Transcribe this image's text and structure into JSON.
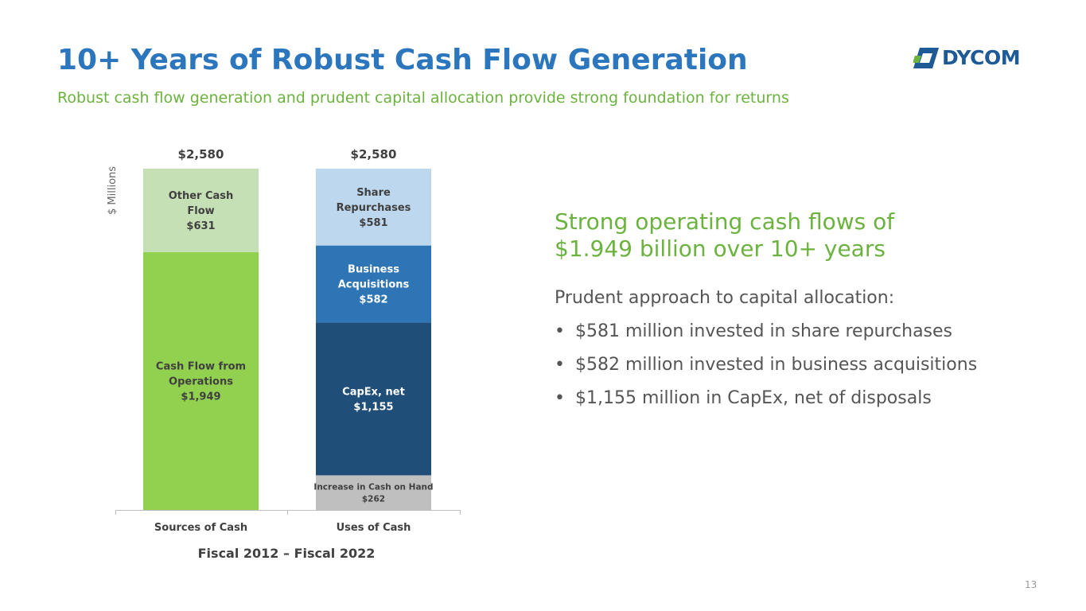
{
  "slide": {
    "title": "10+ Years of Robust Cash Flow Generation",
    "subtitle": "Robust cash flow generation and prudent capital allocation provide strong foundation for returns",
    "page_number": "13"
  },
  "logo": {
    "text": "DYCOM",
    "color": "#1d5a96",
    "icon": "dycom-logo-icon"
  },
  "chart_data": {
    "type": "bar",
    "stacked": true,
    "ylabel": "$ Millions",
    "xlabel": "Fiscal 2012 – Fiscal 2022",
    "categories": [
      "Sources of Cash",
      "Uses of Cash"
    ],
    "totals": [
      "$2,580",
      "$2,580"
    ],
    "ylim": [
      0,
      2580
    ],
    "grid": false,
    "legend": "none",
    "stacks": [
      {
        "category": "Sources of Cash",
        "segments": [
          {
            "label_lines": [
              "Cash Flow from",
              "Operations",
              "$1,949"
            ],
            "value": 1949,
            "color": "#92d050"
          },
          {
            "label_lines": [
              "Other Cash",
              "Flow",
              "$631"
            ],
            "value": 631,
            "color": "#c5e0b4"
          }
        ]
      },
      {
        "category": "Uses of Cash",
        "segments": [
          {
            "label_lines": [
              "Increase in Cash on Hand",
              "$262"
            ],
            "value": 262,
            "color": "#bfbfbf"
          },
          {
            "label_lines": [
              "CapEx, net",
              "$1,155"
            ],
            "value": 1155,
            "color": "#1f4e79"
          },
          {
            "label_lines": [
              "Business",
              "Acquisitions",
              "$582"
            ],
            "value": 582,
            "color": "#2e75b6"
          },
          {
            "label_lines": [
              "Share",
              "Repurchases",
              "$581"
            ],
            "value": 581,
            "color": "#bdd7ee"
          }
        ]
      }
    ]
  },
  "right_panel": {
    "headline_line1": "Strong operating cash flows of",
    "headline_line2": "$1.949 billion over 10+ years",
    "intro": "Prudent approach to capital allocation:",
    "bullets": [
      "$581 million invested in share repurchases",
      "$582 million invested in business acquisitions",
      "$1,155 million in CapEx, net of disposals"
    ],
    "bullet_symbol": "•"
  },
  "colors": {
    "title": "#2b76bd",
    "accent_green": "#6bb33e",
    "body_text": "#555555"
  }
}
